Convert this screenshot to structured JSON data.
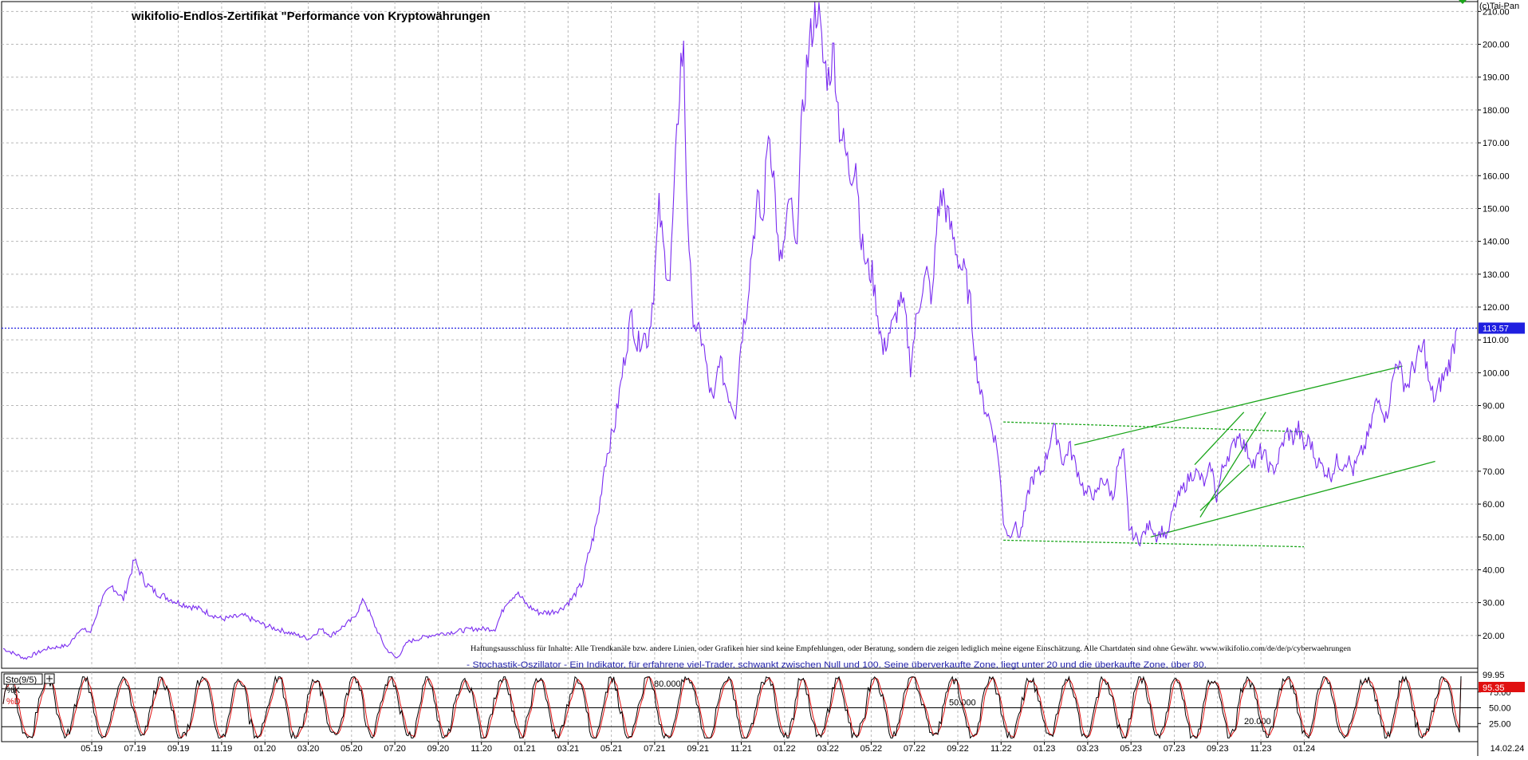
{
  "window": {
    "copyright": "(c)Tai-Pan",
    "title": "wikifolio-Endlos-Zertifikat \"Performance von Kryptowährungen"
  },
  "disclaimer": "Haftungsausschluss für Inhalte: Alle Trendkanäle bzw. andere Linien, oder Grafiken hier sind keine Empfehlungen, oder Beratung, sondern die zeigen lediglich meine eigene Einschätzung. Alle Chartdaten sind ohne Gewähr. www.wikifolio.com/de/de/p/cyberwaehrungen",
  "stoch_note": "- Stochastik-Oszillator - Ein Indikator, für erfahrene viel-Trader, schwankt zwischen Null und 100. Seine überverkaufte Zone, liegt unter 20 und die überkaufte Zone, über 80.",
  "colors": {
    "price": "#7a2cf0",
    "trend": "#1aa51a",
    "current_line": "#1f1fe0",
    "k_line": "#000000",
    "d_line": "#e01010",
    "price_tag_bg": "#1f1fe0",
    "d_tag_bg": "#e01010"
  },
  "chart_data": [
    {
      "type": "line",
      "title": "wikifolio-Endlos-Zertifikat \"Performance von Kryptowährungen",
      "ylim": [
        10,
        213
      ],
      "y_ticks": [
        "20.00",
        "30.00",
        "40.00",
        "50.00",
        "60.00",
        "70.00",
        "80.00",
        "90.00",
        "100.00",
        "110.00",
        "120.00",
        "130.00",
        "140.00",
        "150.00",
        "160.00",
        "170.00",
        "180.00",
        "190.00",
        "200.00",
        "210.00"
      ],
      "x_ticks": [
        "05.19",
        "07.19",
        "09.19",
        "11.19",
        "01.20",
        "03.20",
        "05.20",
        "07.20",
        "09.20",
        "11.20",
        "01.21",
        "03.21",
        "05.21",
        "07.21",
        "09.21",
        "11.21",
        "01.22",
        "03.22",
        "05.22",
        "07.22",
        "09.22",
        "11.22",
        "01.23",
        "03.23",
        "05.23",
        "07.23",
        "09.23",
        "11.23",
        "01.24"
      ],
      "last_date": "14.02.24",
      "last_value": "113.57",
      "series": [
        {
          "values": [
            [
              0,
              16
            ],
            [
              4,
              13
            ],
            [
              8,
              16
            ],
            [
              12,
              17
            ],
            [
              14,
              22
            ],
            [
              16,
              21
            ],
            [
              18,
              31
            ],
            [
              20,
              35
            ],
            [
              22,
              31
            ],
            [
              24,
              43
            ],
            [
              26,
              36
            ],
            [
              28,
              33
            ],
            [
              32,
              30
            ],
            [
              36,
              28
            ],
            [
              40,
              25
            ],
            [
              44,
              26
            ],
            [
              48,
              23
            ],
            [
              52,
              21
            ],
            [
              56,
              19
            ],
            [
              58,
              22
            ],
            [
              60,
              20
            ],
            [
              64,
              25
            ],
            [
              66,
              31
            ],
            [
              68,
              23
            ],
            [
              70,
              16
            ],
            [
              72,
              13
            ],
            [
              74,
              18
            ],
            [
              78,
              20
            ],
            [
              82,
              21
            ],
            [
              86,
              22
            ],
            [
              90,
              22
            ],
            [
              92,
              30
            ],
            [
              94,
              33
            ],
            [
              96,
              29
            ],
            [
              98,
              27
            ],
            [
              100,
              27
            ],
            [
              102,
              28
            ],
            [
              104,
              31
            ],
            [
              106,
              36
            ],
            [
              107,
              44
            ],
            [
              108,
              50
            ],
            [
              109,
              58
            ],
            [
              110,
              72
            ],
            [
              112,
              85
            ],
            [
              114,
              108
            ],
            [
              115,
              118
            ],
            [
              116,
              108
            ],
            [
              117,
              112
            ],
            [
              118,
              110
            ],
            [
              119,
              125
            ],
            [
              120,
              150
            ],
            [
              121,
              135
            ],
            [
              122,
              128
            ],
            [
              123,
              163
            ],
            [
              124,
              195
            ],
            [
              124.5,
              197
            ],
            [
              125,
              158
            ],
            [
              126,
              120
            ],
            [
              127,
              112
            ],
            [
              128,
              110
            ],
            [
              129,
              97
            ],
            [
              130,
              90
            ],
            [
              131,
              105
            ],
            [
              132,
              97
            ],
            [
              133,
              92
            ],
            [
              134,
              88
            ],
            [
              135,
              110
            ],
            [
              136,
              120
            ],
            [
              137,
              138
            ],
            [
              138,
              152
            ],
            [
              139,
              145
            ],
            [
              140,
              175
            ],
            [
              141,
              160
            ],
            [
              142,
              132
            ],
            [
              143,
              140
            ],
            [
              144,
              154
            ],
            [
              145,
              135
            ],
            [
              146,
              172
            ],
            [
              147,
              193
            ],
            [
              148,
              205
            ],
            [
              149,
              212
            ],
            [
              150,
              195
            ],
            [
              151,
              190
            ],
            [
              152,
              198
            ],
            [
              153,
              175
            ],
            [
              154,
              168
            ],
            [
              155,
              160
            ],
            [
              156,
              165
            ],
            [
              157,
              140
            ],
            [
              158,
              132
            ],
            [
              159,
              130
            ],
            [
              160,
              118
            ],
            [
              161,
              106
            ],
            [
              162,
              112
            ],
            [
              163,
              115
            ],
            [
              164,
              122
            ],
            [
              165,
              118
            ],
            [
              166,
              102
            ],
            [
              167,
              115
            ],
            [
              168,
              125
            ],
            [
              169,
              130
            ],
            [
              170,
              122
            ],
            [
              171,
              150
            ],
            [
              172,
              154
            ],
            [
              173,
              146
            ],
            [
              174,
              140
            ],
            [
              175,
              133
            ],
            [
              176,
              130
            ],
            [
              177,
              120
            ],
            [
              178,
              103
            ],
            [
              179,
              92
            ],
            [
              180,
              88
            ],
            [
              181,
              83
            ],
            [
              182,
              76
            ],
            [
              183,
              55
            ],
            [
              184,
              50
            ],
            [
              185,
              54
            ],
            [
              186,
              50
            ],
            [
              187,
              58
            ],
            [
              188,
              67
            ],
            [
              189,
              69
            ],
            [
              190,
              70
            ],
            [
              191,
              75
            ],
            [
              192,
              83
            ],
            [
              193,
              80
            ],
            [
              194,
              72
            ],
            [
              195,
              78
            ],
            [
              196,
              73
            ],
            [
              197,
              68
            ],
            [
              198,
              63
            ],
            [
              199,
              64
            ],
            [
              200,
              62
            ],
            [
              201,
              68
            ],
            [
              202,
              66
            ],
            [
              203,
              62
            ],
            [
              204,
              72
            ],
            [
              205,
              75
            ],
            [
              206,
              53
            ],
            [
              207,
              50
            ],
            [
              208,
              49
            ],
            [
              209,
              52
            ],
            [
              210,
              54
            ],
            [
              211,
              50
            ],
            [
              212,
              52
            ],
            [
              213,
              50
            ],
            [
              214,
              58
            ],
            [
              215,
              62
            ],
            [
              216,
              65
            ],
            [
              217,
              68
            ],
            [
              218,
              70
            ],
            [
              219,
              68
            ],
            [
              220,
              66
            ],
            [
              221,
              72
            ],
            [
              222,
              62
            ],
            [
              223,
              70
            ],
            [
              224,
              75
            ],
            [
              225,
              77
            ],
            [
              226,
              82
            ],
            [
              227,
              78
            ],
            [
              228,
              75
            ],
            [
              229,
              72
            ],
            [
              230,
              76
            ],
            [
              231,
              74
            ],
            [
              232,
              70
            ],
            [
              233,
              72
            ],
            [
              234,
              78
            ],
            [
              235,
              82
            ],
            [
              236,
              80
            ],
            [
              237,
              83
            ],
            [
              238,
              77
            ],
            [
              239,
              80
            ],
            [
              240,
              74
            ],
            [
              241,
              72
            ],
            [
              242,
              70
            ],
            [
              243,
              69
            ],
            [
              244,
              73
            ],
            [
              245,
              72
            ],
            [
              246,
              74
            ],
            [
              247,
              70
            ],
            [
              248,
              74
            ],
            [
              249,
              77
            ],
            [
              250,
              82
            ],
            [
              251,
              90
            ],
            [
              252,
              92
            ],
            [
              253,
              86
            ],
            [
              254,
              95
            ],
            [
              255,
              105
            ],
            [
              256,
              98
            ],
            [
              257,
              96
            ],
            [
              258,
              102
            ],
            [
              259,
              105
            ],
            [
              260,
              108
            ],
            [
              261,
              95
            ],
            [
              262,
              92
            ],
            [
              263,
              97
            ],
            [
              264,
              100
            ],
            [
              265,
              105
            ],
            [
              266,
              113.57
            ]
          ]
        }
      ]
    },
    {
      "type": "line",
      "title": "Sto(9/5)",
      "ylim": [
        0,
        100
      ],
      "y_ticks": [
        "25.00",
        "50.00",
        "75.00"
      ],
      "levels": [
        "80.000",
        "50.000",
        "20.000"
      ],
      "series": [
        {
          "name": "%K",
          "last_value": "99.95"
        },
        {
          "name": "%D",
          "last_value": "95.35"
        }
      ]
    }
  ]
}
